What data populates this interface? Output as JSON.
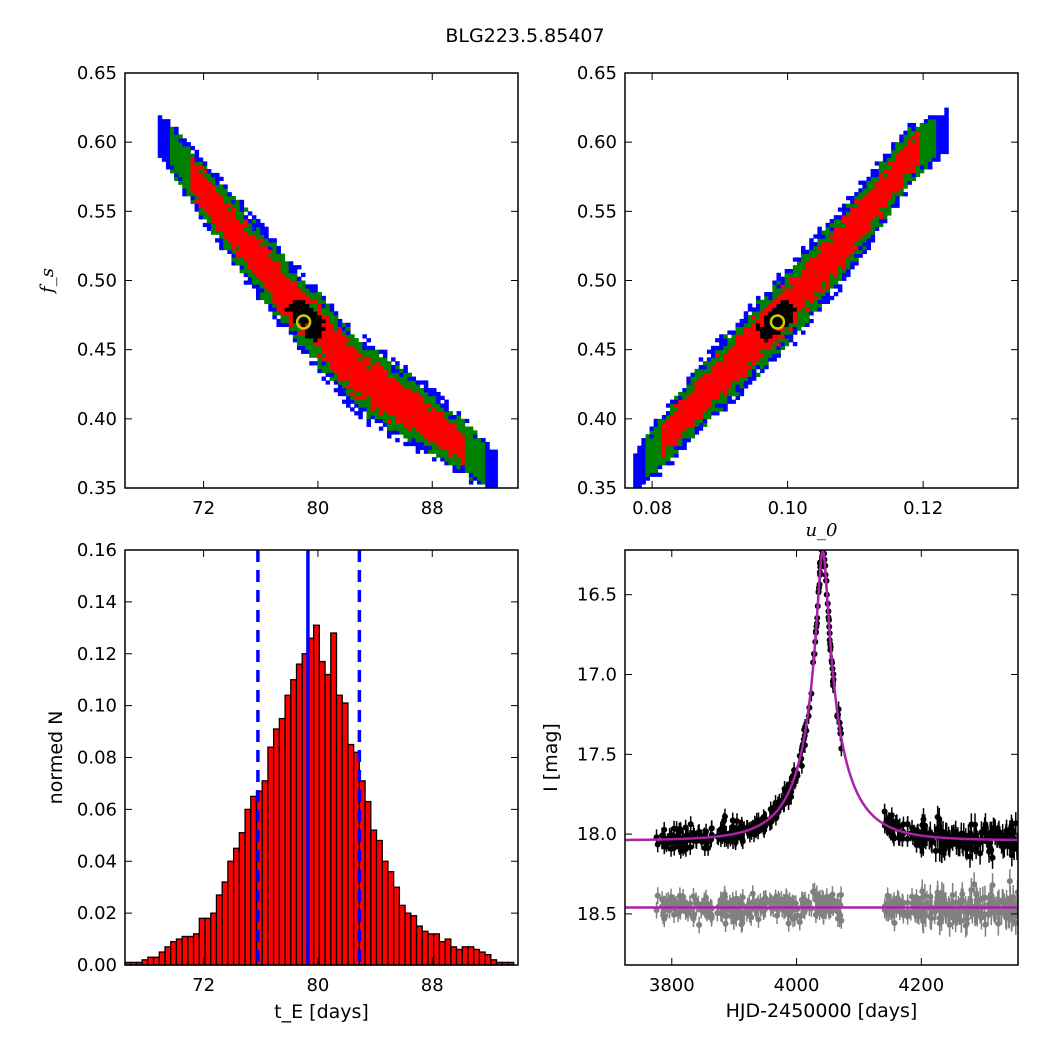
{
  "title": "BLG223.5.85407",
  "colors": {
    "level1": "#0000ff",
    "level2": "#008000",
    "level3": "#ff0000",
    "best_fit": "#000000",
    "marker": "#cccc00",
    "hist_bar": "#ff0000",
    "hist_edge": "#000000",
    "median_line": "#0000ff",
    "model": "#aa22aa",
    "data": "#000000",
    "residual": "#808080"
  },
  "chart_data": [
    {
      "type": "heatmap",
      "panel": "tE-fs",
      "xlabel": "",
      "ylabel": "f_s",
      "xlim": [
        66.5,
        94.0
      ],
      "ylim": [
        0.35,
        0.65
      ],
      "xticks": [
        "72",
        "80",
        "88"
      ],
      "yticks": [
        "0.35",
        "0.40",
        "0.45",
        "0.50",
        "0.55",
        "0.60",
        "0.65"
      ],
      "ridge": [
        [
          68.8,
          0.607
        ],
        [
          73.5,
          0.545
        ],
        [
          78.5,
          0.482
        ],
        [
          83.0,
          0.43
        ],
        [
          87.5,
          0.4
        ],
        [
          92.5,
          0.362
        ]
      ],
      "best_fit": {
        "x": 79.0,
        "y": 0.47
      }
    },
    {
      "type": "heatmap",
      "panel": "u0-fs",
      "xlabel": "u_0",
      "ylabel": "",
      "xlim": [
        0.076,
        0.134
      ],
      "ylim": [
        0.35,
        0.65
      ],
      "xticks": [
        "0.08",
        "0.10",
        "0.12"
      ],
      "yticks": [
        "0.35",
        "0.40",
        "0.45",
        "0.50",
        "0.55",
        "0.60",
        "0.65"
      ],
      "ridge": [
        [
          0.077,
          0.358
        ],
        [
          0.087,
          0.415
        ],
        [
          0.098,
          0.47
        ],
        [
          0.108,
          0.525
        ],
        [
          0.118,
          0.59
        ],
        [
          0.124,
          0.61
        ]
      ],
      "best_fit": {
        "x": 0.0985,
        "y": 0.47
      }
    },
    {
      "type": "bar",
      "panel": "tE-histogram",
      "xlabel": "t_E [days]",
      "ylabel": "normed N",
      "xlim": [
        66.5,
        94.0
      ],
      "ylim": [
        0,
        0.16
      ],
      "xticks": [
        "72",
        "80",
        "88"
      ],
      "yticks": [
        "0.00",
        "0.02",
        "0.04",
        "0.06",
        "0.08",
        "0.10",
        "0.12",
        "0.14",
        "0.16"
      ],
      "bin_start": 66.5,
      "bin_width": 0.4,
      "values": [
        0.001,
        0.001,
        0.001,
        0.002,
        0.003,
        0.003,
        0.005,
        0.007,
        0.009,
        0.01,
        0.011,
        0.011,
        0.012,
        0.018,
        0.018,
        0.02,
        0.027,
        0.032,
        0.04,
        0.045,
        0.051,
        0.06,
        0.065,
        0.067,
        0.071,
        0.084,
        0.091,
        0.095,
        0.104,
        0.11,
        0.116,
        0.12,
        0.126,
        0.131,
        0.117,
        0.112,
        0.128,
        0.104,
        0.101,
        0.085,
        0.082,
        0.071,
        0.063,
        0.052,
        0.048,
        0.04,
        0.036,
        0.03,
        0.023,
        0.02,
        0.019,
        0.015,
        0.013,
        0.012,
        0.012,
        0.009,
        0.01,
        0.007,
        0.006,
        0.007,
        0.007,
        0.006,
        0.005,
        0.004,
        0.002,
        0.001,
        0.001,
        0.001,
        0.0
      ],
      "median": 79.3,
      "interval": [
        75.8,
        82.9
      ]
    },
    {
      "type": "scatter",
      "panel": "lightcurve",
      "xlabel": "HJD-2450000 [days]",
      "ylabel": "I [mag]",
      "xlim": [
        3725,
        4355
      ],
      "ylim": [
        18.82,
        16.22
      ],
      "xticks": [
        "3800",
        "4000",
        "4200"
      ],
      "yticks": [
        "16.5",
        "17.0",
        "17.5",
        "18.0",
        "18.5"
      ],
      "model": {
        "t0": 4042,
        "tE": 79.3,
        "u0": 0.0985,
        "fs": 0.47,
        "baseline": 18.04
      },
      "residual_baseline": 18.46,
      "observing_gap": [
        4075,
        4140
      ]
    }
  ]
}
